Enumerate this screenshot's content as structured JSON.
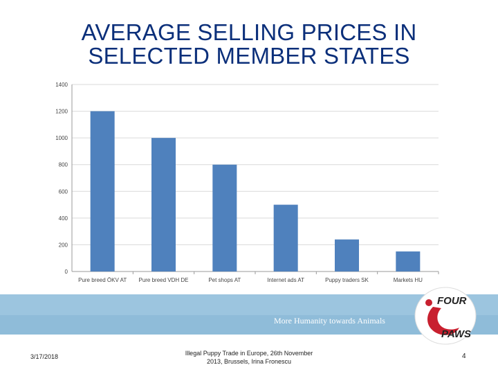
{
  "slide": {
    "title_line1": "AVERAGE SELLING PRICES IN",
    "title_line2": "SELECTED MEMBER STATES",
    "tagline": "More Humanity towards Animals",
    "logo_text_top": "FOUR",
    "logo_text_bottom": "PAWS",
    "footer_date": "3/17/2018",
    "footer_line1": "Illegal Puppy Trade in Europe, 26th November",
    "footer_line2": "2013, Brussels,  Irina Fronescu",
    "page_number": "4"
  },
  "colors": {
    "bar": "#4f81bd",
    "title": "#0b2f7a",
    "band": "#8fbcd9",
    "logo_red": "#c8202f"
  },
  "chart_data": {
    "type": "bar",
    "title": "",
    "xlabel": "",
    "ylabel": "",
    "categories": [
      "Pure breed ÖKV AT",
      "Pure breed VDH DE",
      "Pet shops AT",
      "Internet ads AT",
      "Puppy traders SK",
      "Markets HU"
    ],
    "values": [
      1200,
      1000,
      800,
      500,
      240,
      150
    ],
    "ylim": [
      0,
      1400
    ],
    "yticks": [
      "0",
      "200",
      "400",
      "600",
      "800",
      "1000",
      "1200",
      "1400"
    ],
    "grid": true,
    "legend": "none"
  }
}
